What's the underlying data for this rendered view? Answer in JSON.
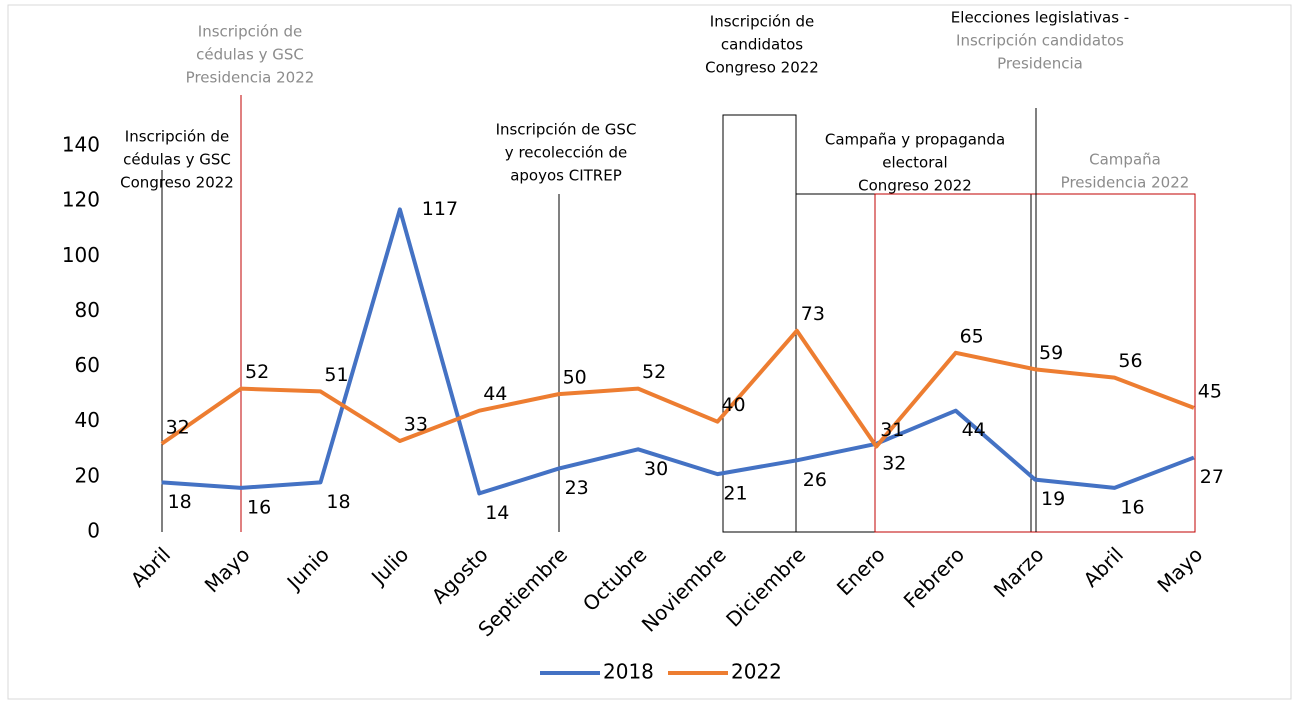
{
  "chart_data": {
    "type": "line",
    "categories": [
      "Abril",
      "Mayo",
      "Junio",
      "Julio",
      "Agosto",
      "Septiembre",
      "Octubre",
      "Noviembre",
      "Diciembre",
      "Enero",
      "Febrero",
      "Marzo",
      "Abril",
      "Mayo"
    ],
    "series": [
      {
        "name": "2018",
        "color": "#4472c4",
        "values": [
          18,
          16,
          18,
          117,
          14,
          23,
          30,
          21,
          26,
          32,
          44,
          19,
          16,
          27
        ]
      },
      {
        "name": "2022",
        "color": "#ed7d31",
        "values": [
          32,
          52,
          51,
          33,
          44,
          50,
          52,
          40,
          73,
          31,
          65,
          59,
          56,
          45
        ]
      }
    ],
    "ylim": [
      0,
      140
    ],
    "yticks": [
      0,
      20,
      40,
      60,
      80,
      100,
      120,
      140
    ],
    "grid": false,
    "legend": "bottom",
    "annotations": [
      {
        "lines": [
          "Inscripción de",
          "cédulas y GSC",
          "Presidencia 2022"
        ],
        "colors": [
          "#8c8c8c",
          "#8c8c8c",
          "#8c8c8c"
        ]
      },
      {
        "lines": [
          "Inscripción de",
          "cédulas y GSC",
          "Congreso 2022"
        ],
        "colors": [
          "#000000",
          "#000000",
          "#000000"
        ]
      },
      {
        "lines": [
          "Inscripción de GSC",
          "y recolección de",
          "apoyos CITREP"
        ],
        "colors": [
          "#000000",
          "#000000",
          "#000000"
        ]
      },
      {
        "lines": [
          "Inscripción de",
          "candidatos",
          "Congreso 2022"
        ],
        "colors": [
          "#000000",
          "#000000",
          "#000000"
        ]
      },
      {
        "lines": [
          "Campaña y propaganda",
          "electoral",
          "Congreso 2022"
        ],
        "colors": [
          "#000000",
          "#000000",
          "#000000"
        ]
      },
      {
        "lines": [
          "Elecciones legislativas -",
          "Inscripción candidatos",
          "Presidencia"
        ],
        "colors": [
          "#000000",
          "#8c8c8c",
          "#8c8c8c"
        ]
      },
      {
        "lines": [
          "Campaña",
          "Presidencia 2022"
        ],
        "colors": [
          "#8c8c8c",
          "#8c8c8c"
        ]
      }
    ]
  }
}
